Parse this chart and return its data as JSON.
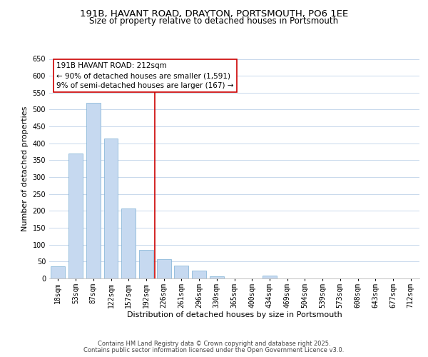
{
  "title": "191B, HAVANT ROAD, DRAYTON, PORTSMOUTH, PO6 1EE",
  "subtitle": "Size of property relative to detached houses in Portsmouth",
  "xlabel": "Distribution of detached houses by size in Portsmouth",
  "ylabel": "Number of detached properties",
  "categories": [
    "18sqm",
    "53sqm",
    "87sqm",
    "122sqm",
    "157sqm",
    "192sqm",
    "226sqm",
    "261sqm",
    "296sqm",
    "330sqm",
    "365sqm",
    "400sqm",
    "434sqm",
    "469sqm",
    "504sqm",
    "539sqm",
    "573sqm",
    "608sqm",
    "643sqm",
    "677sqm",
    "712sqm"
  ],
  "values": [
    35,
    370,
    520,
    415,
    207,
    85,
    57,
    37,
    23,
    7,
    0,
    0,
    8,
    0,
    0,
    0,
    0,
    0,
    0,
    0,
    0
  ],
  "bar_color": "#c6d9f0",
  "bar_edge_color": "#7bafd4",
  "vline_x_index": 5.5,
  "vline_color": "#cc0000",
  "ylim": [
    0,
    650
  ],
  "yticks": [
    0,
    50,
    100,
    150,
    200,
    250,
    300,
    350,
    400,
    450,
    500,
    550,
    600,
    650
  ],
  "annotation_title": "191B HAVANT ROAD: 212sqm",
  "annotation_line1": "← 90% of detached houses are smaller (1,591)",
  "annotation_line2": "9% of semi-detached houses are larger (167) →",
  "annotation_box_color": "#ffffff",
  "annotation_box_edge": "#cc0000",
  "footer_line1": "Contains HM Land Registry data © Crown copyright and database right 2025.",
  "footer_line2": "Contains public sector information licensed under the Open Government Licence v3.0.",
  "background_color": "#ffffff",
  "grid_color": "#c8d8ec",
  "title_fontsize": 9.5,
  "subtitle_fontsize": 8.5,
  "axis_label_fontsize": 8,
  "tick_fontsize": 7,
  "annotation_fontsize": 7.5,
  "footer_fontsize": 6
}
